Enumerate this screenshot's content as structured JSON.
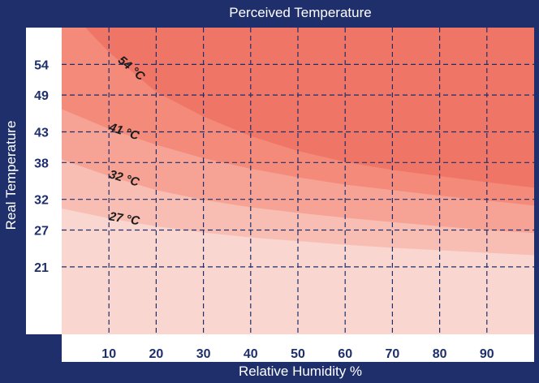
{
  "chart_data": {
    "type": "area",
    "title": "Perceived Temperature",
    "xlabel": "Relative Humidity %",
    "ylabel": "Real Temperature",
    "yunit": "°C",
    "xlim": [
      0,
      100
    ],
    "ylim": [
      10,
      60
    ],
    "x_ticks": [
      10,
      20,
      30,
      40,
      50,
      60,
      70,
      80,
      90
    ],
    "y_ticks": [
      21,
      27,
      32,
      38,
      43,
      49,
      54
    ],
    "grid": true,
    "colors": [
      "#f9d6cf",
      "#f8beb3",
      "#f6a395",
      "#f38a7a",
      "#ef7666"
    ],
    "series": [
      {
        "name": "27 °C",
        "x": [
          0,
          10,
          20,
          30,
          40,
          50,
          60,
          70,
          80,
          90,
          100
        ],
        "y": [
          30.5,
          28.9,
          27.6,
          26.6,
          25.8,
          25.2,
          24.6,
          24.1,
          23.7,
          23.3,
          22.9
        ]
      },
      {
        "name": "32 °C",
        "x": [
          0,
          10,
          20,
          30,
          40,
          50,
          60,
          70,
          80,
          90,
          100
        ],
        "y": [
          38.5,
          35.8,
          33.5,
          31.9,
          30.7,
          29.8,
          29.0,
          28.3,
          27.6,
          27.0,
          26.5
        ]
      },
      {
        "name": "41 °C",
        "x": [
          0,
          10,
          20,
          30,
          40,
          50,
          60,
          70,
          80,
          90,
          100
        ],
        "y": [
          46.7,
          43.5,
          40.9,
          38.7,
          37.0,
          35.6,
          34.4,
          33.5,
          32.6,
          31.8,
          31.0
        ]
      },
      {
        "name": "54 °C",
        "x": [
          5,
          10,
          20,
          30,
          40,
          50,
          60,
          70,
          80,
          90,
          100
        ],
        "y": [
          60.0,
          56.0,
          49.5,
          45.5,
          42.3,
          39.9,
          38.1,
          36.8,
          35.8,
          34.8,
          33.9
        ]
      }
    ]
  }
}
